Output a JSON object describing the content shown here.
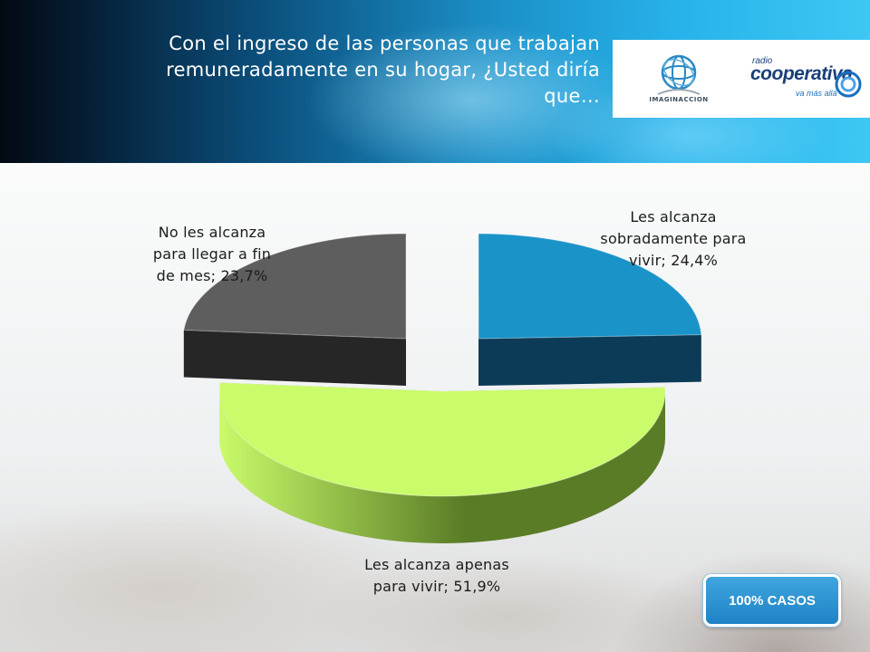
{
  "header": {
    "title": "Con el ingreso de las personas que trabajan remuneradamente en su hogar, ¿Usted diría que…",
    "logo_left_text": "IMAGINACCION",
    "logo_right_small": "radio",
    "logo_right_name": "cooperativa",
    "logo_right_tagline": "va más allá"
  },
  "badge": {
    "label": "100% CASOS"
  },
  "chart_data": {
    "type": "pie",
    "style": "3d-exploded",
    "slices": [
      {
        "label": "Les alcanza sobradamente para vivir",
        "value": 24.4,
        "color": "#1a93c9",
        "side_color": "#0c3b57"
      },
      {
        "label": "Les alcanza apenas para vivir",
        "value": 51.9,
        "color": "#c9fb6a",
        "side_color": "#5a7c26"
      },
      {
        "label": "No les alcanza para llegar a fin de mes",
        "value": 23.7,
        "color": "#5e5e5e",
        "side_color": "#262626"
      }
    ],
    "data_labels": [
      "Les alcanza sobradamente para vivir; 24,4%",
      "Les alcanza apenas para vivir; 51,9%",
      "No les alcanza para llegar a fin de mes; 23,7%"
    ]
  }
}
